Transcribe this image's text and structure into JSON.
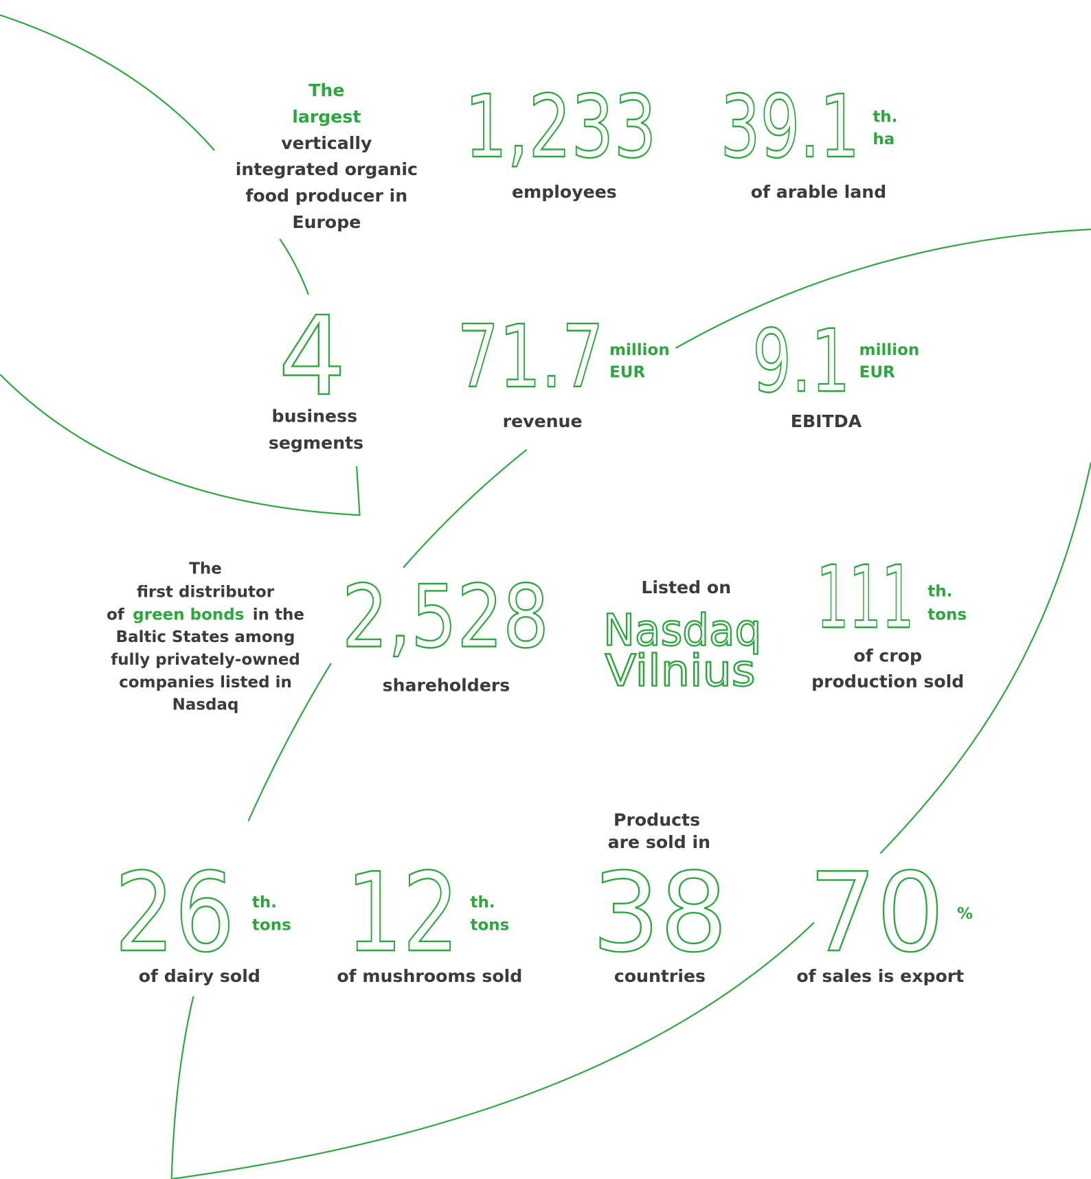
{
  "intro": {
    "highlight": [
      "The",
      "largest"
    ],
    "lines": [
      "vertically",
      "integrated organic",
      "food producer in",
      "Europe"
    ]
  },
  "stats": [
    {
      "number": "1,233",
      "label": [
        "employees"
      ]
    },
    {
      "number": "39.1",
      "unit": [
        "th.",
        "ha"
      ],
      "label": [
        "of arable land"
      ]
    },
    {
      "number": "4",
      "label": [
        "business",
        "segments"
      ]
    },
    {
      "number": "71.7",
      "unit": [
        "million",
        "EUR"
      ],
      "label": [
        "revenue"
      ]
    },
    {
      "number": "9.1",
      "unit": [
        "million",
        "EUR"
      ],
      "label": [
        "EBITDA"
      ]
    },
    {
      "number": "2,528",
      "label": [
        "shareholders"
      ]
    },
    {
      "number": "111",
      "unit": [
        "th.",
        "tons"
      ],
      "label": [
        "of crop",
        "production sold"
      ]
    },
    {
      "number": "26",
      "unit": [
        "th.",
        "tons"
      ],
      "label": [
        "of dairy sold"
      ]
    },
    {
      "number": "12",
      "unit": [
        "th.",
        "tons"
      ],
      "label": [
        "of mushrooms sold"
      ]
    },
    {
      "prefix": [
        "Products",
        "are sold in"
      ],
      "number": "38",
      "label": [
        "countries"
      ]
    },
    {
      "number": "70",
      "unit": [
        "%"
      ],
      "label": [
        "of sales is export"
      ]
    }
  ],
  "bonds": {
    "lines": [
      "The",
      "first distributor"
    ],
    "line3": {
      "before": "of",
      "highlight": "green bonds",
      "after": "in the"
    },
    "rest": [
      "Baltic States among",
      "fully privately-owned",
      "companies listed in",
      "Nasdaq"
    ]
  },
  "listing": {
    "prefix": "Listed on",
    "name": [
      "Nasdaq",
      "Vilnius"
    ]
  }
}
